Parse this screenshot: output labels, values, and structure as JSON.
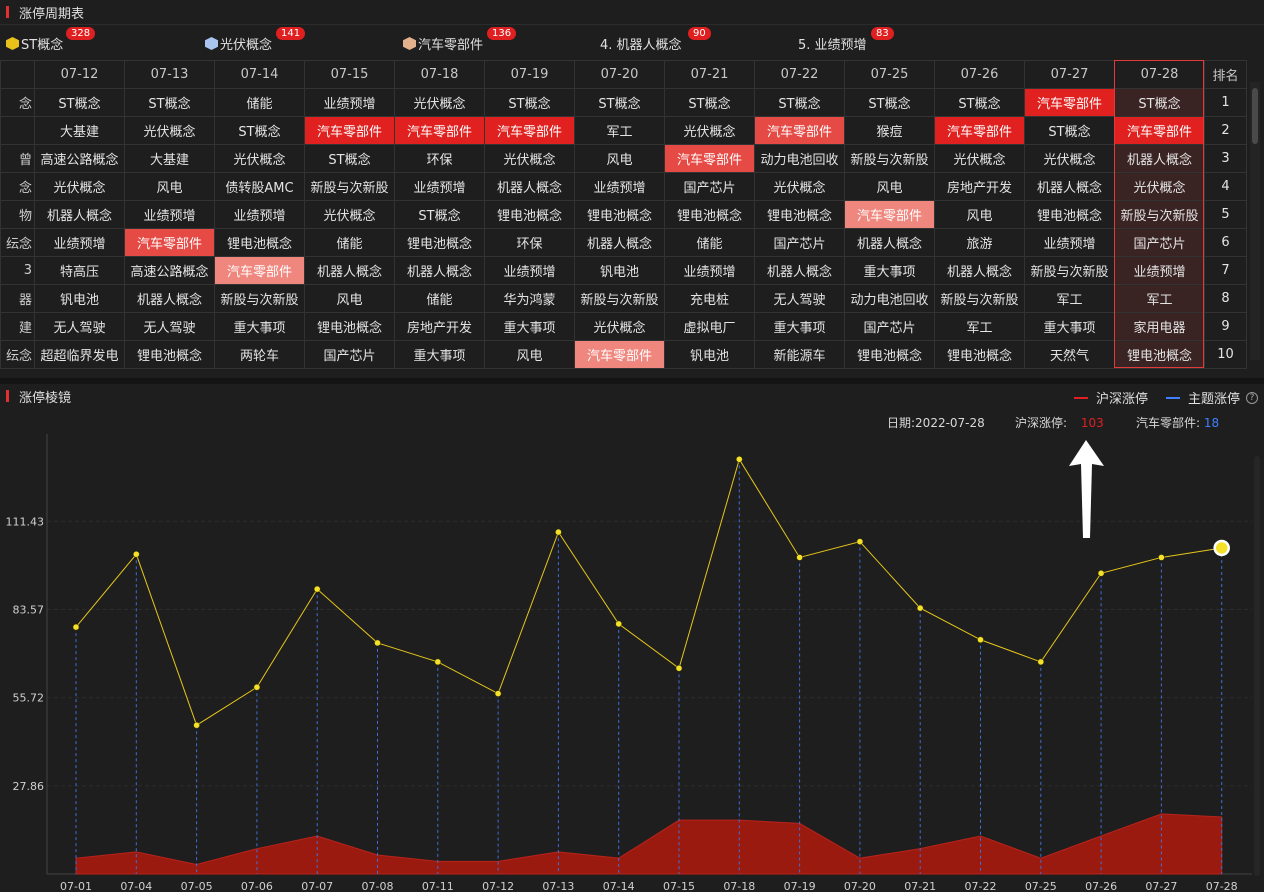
{
  "panel1_title": "涨停周期表",
  "panel2_title": "涨停棱镜",
  "legend_chips": [
    {
      "label": "ST概念",
      "count": "328",
      "icon": "gold-hex-icon",
      "color": "#e8c21a"
    },
    {
      "label": "光伏概念",
      "count": "141",
      "icon": "blue-hex-icon",
      "color": "#a9c4ee"
    },
    {
      "label": "汽车零部件",
      "count": "136",
      "icon": "tan-hex-icon",
      "color": "#e3b18b"
    },
    {
      "label": "4. 机器人概念",
      "count": "90",
      "icon": "",
      "color": ""
    },
    {
      "label": "5. 业绩预增",
      "count": "83",
      "icon": "",
      "color": ""
    }
  ],
  "table": {
    "stub_header": "",
    "dates": [
      "07-12",
      "07-13",
      "07-14",
      "07-15",
      "07-18",
      "07-19",
      "07-20",
      "07-21",
      "07-22",
      "07-25",
      "07-26",
      "07-27",
      "07-28"
    ],
    "rank_header": "排名",
    "rows": [
      {
        "rank": "1",
        "stub": "念",
        "cells": [
          "ST概念",
          "ST概念",
          "储能",
          "业绩预增",
          "光伏概念",
          "ST概念",
          "ST概念",
          "ST概念",
          "ST概念",
          "ST概念",
          "ST概念",
          "汽车零部件",
          "ST概念"
        ],
        "hl": {
          "11": "strong"
        }
      },
      {
        "rank": "2",
        "stub": "",
        "cells": [
          "大基建",
          "光伏概念",
          "ST概念",
          "汽车零部件",
          "汽车零部件",
          "汽车零部件",
          "军工",
          "光伏概念",
          "汽车零部件",
          "猴痘",
          "汽车零部件",
          "ST概念",
          "汽车零部件"
        ],
        "hl": {
          "3": "strong",
          "4": "strong",
          "5": "strong",
          "8": "mid",
          "10": "strong",
          "12": "strong"
        }
      },
      {
        "rank": "3",
        "stub": "曾",
        "cells": [
          "高速公路概念",
          "大基建",
          "光伏概念",
          "ST概念",
          "环保",
          "光伏概念",
          "风电",
          "汽车零部件",
          "动力电池回收",
          "新股与次新股",
          "光伏概念",
          "光伏概念",
          "机器人概念"
        ],
        "hl": {
          "7": "mid"
        }
      },
      {
        "rank": "4",
        "stub": "念",
        "cells": [
          "光伏概念",
          "风电",
          "债转股AMC",
          "新股与次新股",
          "业绩预增",
          "机器人概念",
          "业绩预增",
          "国产芯片",
          "光伏概念",
          "风电",
          "房地产开发",
          "机器人概念",
          "光伏概念"
        ],
        "hl": {}
      },
      {
        "rank": "5",
        "stub": "物",
        "cells": [
          "机器人概念",
          "业绩预增",
          "业绩预增",
          "光伏概念",
          "ST概念",
          "锂电池概念",
          "锂电池概念",
          "锂电池概念",
          "锂电池概念",
          "汽车零部件",
          "风电",
          "锂电池概念",
          "新股与次新股"
        ],
        "hl": {
          "9": "light"
        }
      },
      {
        "rank": "6",
        "stub": "纭念",
        "cells": [
          "业绩预增",
          "汽车零部件",
          "锂电池概念",
          "储能",
          "锂电池概念",
          "环保",
          "机器人概念",
          "储能",
          "国产芯片",
          "机器人概念",
          "旅游",
          "业绩预增",
          "国产芯片"
        ],
        "hl": {
          "1": "mid"
        }
      },
      {
        "rank": "7",
        "stub": "3",
        "cells": [
          "特高压",
          "高速公路概念",
          "汽车零部件",
          "机器人概念",
          "机器人概念",
          "业绩预增",
          "钒电池",
          "业绩预增",
          "机器人概念",
          "重大事项",
          "机器人概念",
          "新股与次新股",
          "业绩预增"
        ],
        "hl": {
          "2": "light"
        }
      },
      {
        "rank": "8",
        "stub": "器",
        "cells": [
          "钒电池",
          "机器人概念",
          "新股与次新股",
          "风电",
          "储能",
          "华为鸿蒙",
          "新股与次新股",
          "充电桩",
          "无人驾驶",
          "动力电池回收",
          "新股与次新股",
          "军工",
          "军工"
        ],
        "hl": {}
      },
      {
        "rank": "9",
        "stub": "建",
        "cells": [
          "无人驾驶",
          "无人驾驶",
          "重大事项",
          "锂电池概念",
          "房地产开发",
          "重大事项",
          "光伏概念",
          "虚拟电厂",
          "重大事项",
          "国产芯片",
          "军工",
          "重大事项",
          "家用电器"
        ],
        "hl": {}
      },
      {
        "rank": "10",
        "stub": "纭念",
        "cells": [
          "超超临界发电",
          "锂电池概念",
          "两轮车",
          "国产芯片",
          "重大事项",
          "风电",
          "汽车零部件",
          "钒电池",
          "新能源车",
          "锂电池概念",
          "锂电池概念",
          "天然气",
          "锂电池概念"
        ],
        "hl": {
          "6": "light"
        }
      }
    ]
  },
  "chart_legend": [
    {
      "label": "沪深涨停",
      "color": "#e02020"
    },
    {
      "label": "主题涨停",
      "color": "#3f7fff"
    }
  ],
  "help_icon": "?",
  "info": {
    "date_label": "日期:",
    "date_value": "2022-07-28",
    "market_label": "沪深涨停:",
    "market_value": "103",
    "theme_label": "汽车零部件:",
    "theme_value": "18",
    "market_color": "#e02020",
    "theme_color": "#3f7fff"
  },
  "chart_data": {
    "type": "line",
    "x": [
      "07-01",
      "07-04",
      "07-05",
      "07-06",
      "07-07",
      "07-08",
      "07-11",
      "07-12",
      "07-13",
      "07-14",
      "07-15",
      "07-18",
      "07-19",
      "07-20",
      "07-21",
      "07-22",
      "07-25",
      "07-26",
      "07-27",
      "07-28"
    ],
    "y_ticks": [
      "111.43",
      "83.57",
      "55.72",
      "27.86"
    ],
    "ylim": [
      0,
      139
    ],
    "series": [
      {
        "name": "沪深涨停",
        "type": "line",
        "color": "#e6c619",
        "values": [
          78,
          101,
          47,
          59,
          90,
          73,
          67,
          57,
          108,
          79,
          65,
          131,
          100,
          105,
          84,
          74,
          67,
          95,
          100,
          103
        ]
      },
      {
        "name": "汽车零部件",
        "type": "area",
        "color": "#9b1a10",
        "values": [
          5,
          7,
          3,
          8,
          12,
          6,
          4,
          4,
          7,
          5,
          17,
          17,
          16,
          5,
          8,
          12,
          5,
          12,
          19,
          18
        ]
      }
    ],
    "xlabel": "",
    "ylabel": "",
    "grid": true,
    "highlight_index": 19
  }
}
